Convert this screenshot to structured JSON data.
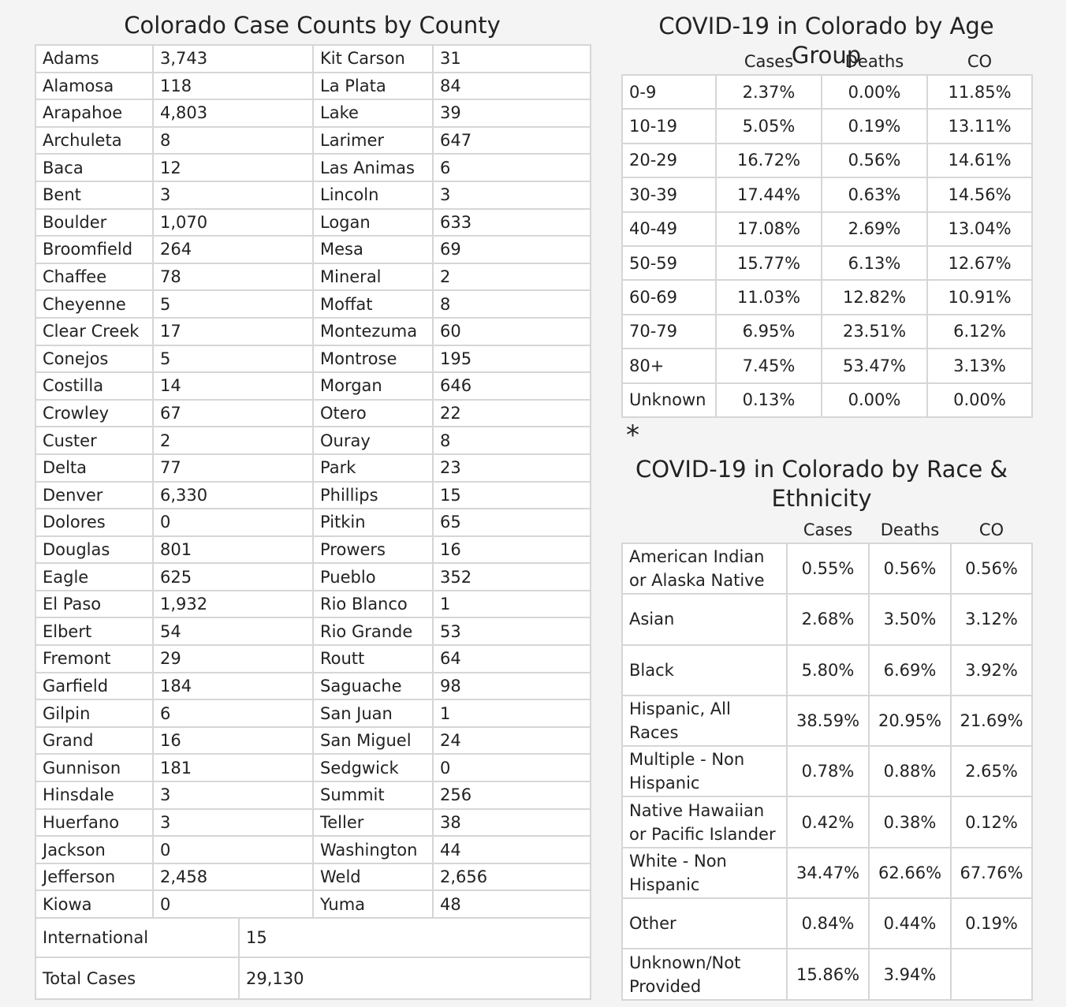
{
  "county_table": {
    "title": "Colorado Case Counts by County",
    "rows": [
      [
        "Adams",
        "3,743",
        "Kit Carson",
        "31"
      ],
      [
        "Alamosa",
        "118",
        "La Plata",
        "84"
      ],
      [
        "Arapahoe",
        "4,803",
        "Lake",
        "39"
      ],
      [
        "Archuleta",
        "8",
        "Larimer",
        "647"
      ],
      [
        "Baca",
        "12",
        "Las Animas",
        "6"
      ],
      [
        "Bent",
        "3",
        "Lincoln",
        "3"
      ],
      [
        "Boulder",
        "1,070",
        "Logan",
        "633"
      ],
      [
        "Broomfield",
        "264",
        "Mesa",
        "69"
      ],
      [
        "Chaffee",
        "78",
        "Mineral",
        "2"
      ],
      [
        "Cheyenne",
        "5",
        "Moffat",
        "8"
      ],
      [
        "Clear Creek",
        "17",
        "Montezuma",
        "60"
      ],
      [
        "Conejos",
        "5",
        "Montrose",
        "195"
      ],
      [
        "Costilla",
        "14",
        "Morgan",
        "646"
      ],
      [
        "Crowley",
        "67",
        "Otero",
        "22"
      ],
      [
        "Custer",
        "2",
        "Ouray",
        "8"
      ],
      [
        "Delta",
        "77",
        "Park",
        "23"
      ],
      [
        "Denver",
        "6,330",
        "Phillips",
        "15"
      ],
      [
        "Dolores",
        "0",
        "Pitkin",
        "65"
      ],
      [
        "Douglas",
        "801",
        "Prowers",
        "16"
      ],
      [
        "Eagle",
        "625",
        "Pueblo",
        "352"
      ],
      [
        "El Paso",
        "1,932",
        "Rio Blanco",
        "1"
      ],
      [
        "Elbert",
        "54",
        "Rio Grande",
        "53"
      ],
      [
        "Fremont",
        "29",
        "Routt",
        "64"
      ],
      [
        "Garfield",
        "184",
        "Saguache",
        "98"
      ],
      [
        "Gilpin",
        "6",
        "San Juan",
        "1"
      ],
      [
        "Grand",
        "16",
        "San Miguel",
        "24"
      ],
      [
        "Gunnison",
        "181",
        "Sedgwick",
        "0"
      ],
      [
        "Hinsdale",
        "3",
        "Summit",
        "256"
      ],
      [
        "Huerfano",
        "3",
        "Teller",
        "38"
      ],
      [
        "Jackson",
        "0",
        "Washington",
        "44"
      ],
      [
        "Jefferson",
        "2,458",
        "Weld",
        "2,656"
      ],
      [
        "Kiowa",
        "0",
        "Yuma",
        "48"
      ]
    ],
    "international": {
      "label": "International",
      "value": "15"
    },
    "total": {
      "label": "Total Cases",
      "value": "29,130"
    }
  },
  "age_table": {
    "title": "COVID-19 in Colorado by Age Group",
    "columns": [
      "Cases",
      "Deaths",
      "CO"
    ],
    "rows": [
      [
        "0-9",
        "2.37%",
        "0.00%",
        "11.85%"
      ],
      [
        "10-19",
        "5.05%",
        "0.19%",
        "13.11%"
      ],
      [
        "20-29",
        "16.72%",
        "0.56%",
        "14.61%"
      ],
      [
        "30-39",
        "17.44%",
        "0.63%",
        "14.56%"
      ],
      [
        "40-49",
        "17.08%",
        "2.69%",
        "13.04%"
      ],
      [
        "50-59",
        "15.77%",
        "6.13%",
        "12.67%"
      ],
      [
        "60-69",
        "11.03%",
        "12.82%",
        "10.91%"
      ],
      [
        "70-79",
        "6.95%",
        "23.51%",
        "6.12%"
      ],
      [
        "80+",
        "7.45%",
        "53.47%",
        "3.13%"
      ],
      [
        "Unknown",
        "0.13%",
        "0.00%",
        "0.00%"
      ]
    ]
  },
  "note": "*",
  "race_table": {
    "title": "COVID-19 in Colorado by Race & Ethnicity",
    "columns": [
      "Cases",
      "Deaths",
      "CO"
    ],
    "rows": [
      [
        "American Indian or Alaska Native",
        "0.55%",
        "0.56%",
        "0.56%"
      ],
      [
        "Asian",
        "2.68%",
        "3.50%",
        "3.12%"
      ],
      [
        "Black",
        "5.80%",
        "6.69%",
        "3.92%"
      ],
      [
        "Hispanic, All Races",
        "38.59%",
        "20.95%",
        "21.69%"
      ],
      [
        "Multiple - Non Hispanic",
        "0.78%",
        "0.88%",
        "2.65%"
      ],
      [
        "Native Hawaiian or Pacific Islander",
        "0.42%",
        "0.38%",
        "0.12%"
      ],
      [
        "White - Non Hispanic",
        "34.47%",
        "62.66%",
        "67.76%"
      ],
      [
        "Other",
        "0.84%",
        "0.44%",
        "0.19%"
      ],
      [
        "Unknown/Not Provided",
        "15.86%",
        "3.94%"
      ]
    ]
  }
}
